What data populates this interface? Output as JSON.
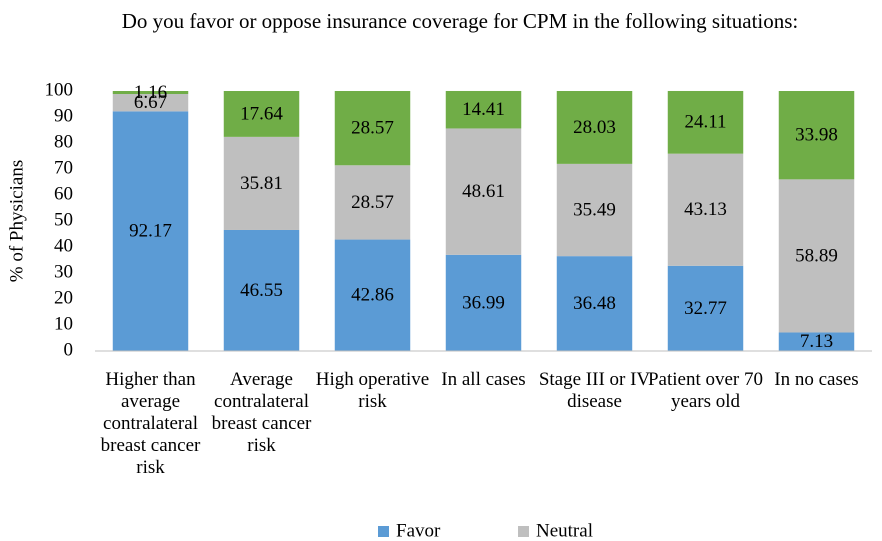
{
  "chart_data": {
    "type": "stacked_bar",
    "title": "Do you favor or oppose insurance coverage for CPM in the following situations:",
    "y_label": "% of Physicians",
    "categories": [
      "Higher than average contralateral breast cancer risk",
      "Average contralateral breast cancer risk",
      "High operative risk",
      "In all cases",
      "Stage III or IV disease",
      "Patient over 70 years old",
      "In no cases"
    ],
    "series": [
      {
        "name": "Favor",
        "color": "#5b9bd5",
        "values": [
          92.17,
          46.55,
          42.86,
          36.99,
          36.48,
          32.77,
          7.13
        ]
      },
      {
        "name": "Neutral",
        "color": "#bfbfbf",
        "values": [
          6.67,
          35.81,
          28.57,
          48.61,
          35.49,
          43.13,
          58.89
        ]
      },
      {
        "color": "#70ad47",
        "values": [
          1.16,
          17.64,
          28.57,
          14.41,
          28.03,
          24.11,
          33.98
        ]
      }
    ],
    "ylim": [
      0,
      100
    ],
    "yticks": [
      0,
      10,
      20,
      30,
      40,
      50,
      60,
      70,
      80,
      90,
      100
    ],
    "grid": false,
    "legend": "bottom"
  }
}
